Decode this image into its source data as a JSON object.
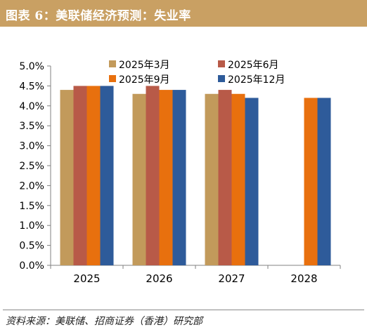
{
  "header": {
    "title": "图表 6：美联储经济预测：失业率"
  },
  "source": "资料来源：美联储、招商证券（香港）研究部",
  "chart_data": {
    "type": "bar",
    "title": "",
    "xlabel": "",
    "ylabel": "",
    "categories": [
      "2025",
      "2026",
      "2027",
      "2028"
    ],
    "ylim": [
      0,
      5
    ],
    "yticks": [
      0.0,
      0.5,
      1.0,
      1.5,
      2.0,
      2.5,
      3.0,
      3.5,
      4.0,
      4.5,
      5.0
    ],
    "ytick_labels": [
      "0.0%",
      "0.5%",
      "1.0%",
      "1.5%",
      "2.0%",
      "2.5%",
      "3.0%",
      "3.5%",
      "4.0%",
      "4.5%",
      "5.0%"
    ],
    "grid": false,
    "legend_position": "top",
    "series": [
      {
        "name": "2025年3月",
        "color": "#c29a5b",
        "values": [
          4.4,
          4.3,
          4.3,
          null
        ]
      },
      {
        "name": "2025年6月",
        "color": "#b85a48",
        "values": [
          4.5,
          4.5,
          4.4,
          null
        ]
      },
      {
        "name": "2025年9月",
        "color": "#e8700e",
        "values": [
          4.5,
          4.4,
          4.3,
          4.2
        ]
      },
      {
        "name": "2025年12月",
        "color": "#2e5b9a",
        "values": [
          4.5,
          4.4,
          4.2,
          4.2
        ]
      }
    ]
  }
}
